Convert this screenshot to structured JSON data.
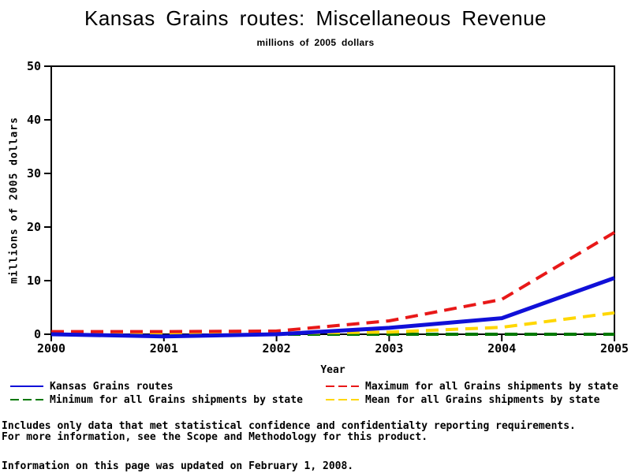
{
  "chart_data": {
    "type": "line",
    "title": "Kansas Grains routes: Miscellaneous Revenue",
    "subtitle": "millions of 2005 dollars",
    "xlabel": "Year",
    "ylabel": "millions of 2005 dollars",
    "x": [
      2000,
      2001,
      2002,
      2003,
      2004,
      2005
    ],
    "xlim": [
      2000,
      2005
    ],
    "ylim": [
      0,
      50
    ],
    "yticks": [
      0,
      10,
      20,
      30,
      40,
      50
    ],
    "grid": false,
    "legend_position": "bottom",
    "frame_color": "#000000",
    "series": [
      {
        "name": "Kansas Grains routes",
        "color": "#1010d8",
        "dashed": false,
        "width": 5,
        "zorder": 4,
        "values": [
          0,
          -0.4,
          0,
          1.2,
          3,
          10.5
        ]
      },
      {
        "name": "Maximum for all Grains shipments by state",
        "color": "#e81818",
        "dashed": true,
        "width": 4,
        "zorder": 3,
        "values": [
          0.5,
          0.5,
          0.6,
          2.5,
          6.5,
          19
        ]
      },
      {
        "name": "Minimum for all Grains shipments by state",
        "color": "#007800",
        "dashed": true,
        "width": 4,
        "zorder": 1,
        "values": [
          0,
          0,
          0,
          0,
          0,
          0
        ]
      },
      {
        "name": "Mean for all Grains shipments by state",
        "color": "#ffd700",
        "dashed": true,
        "width": 4,
        "zorder": 2,
        "values": [
          0.2,
          0.2,
          0.2,
          0.4,
          1.3,
          4
        ]
      }
    ]
  },
  "footer": {
    "line1": "Includes only data that met statistical confidence and confidentialty reporting requirements.",
    "line2": "For more information, see the Scope and Methodology for this product.",
    "updated": "Information on this page was updated on February 1, 2008."
  }
}
